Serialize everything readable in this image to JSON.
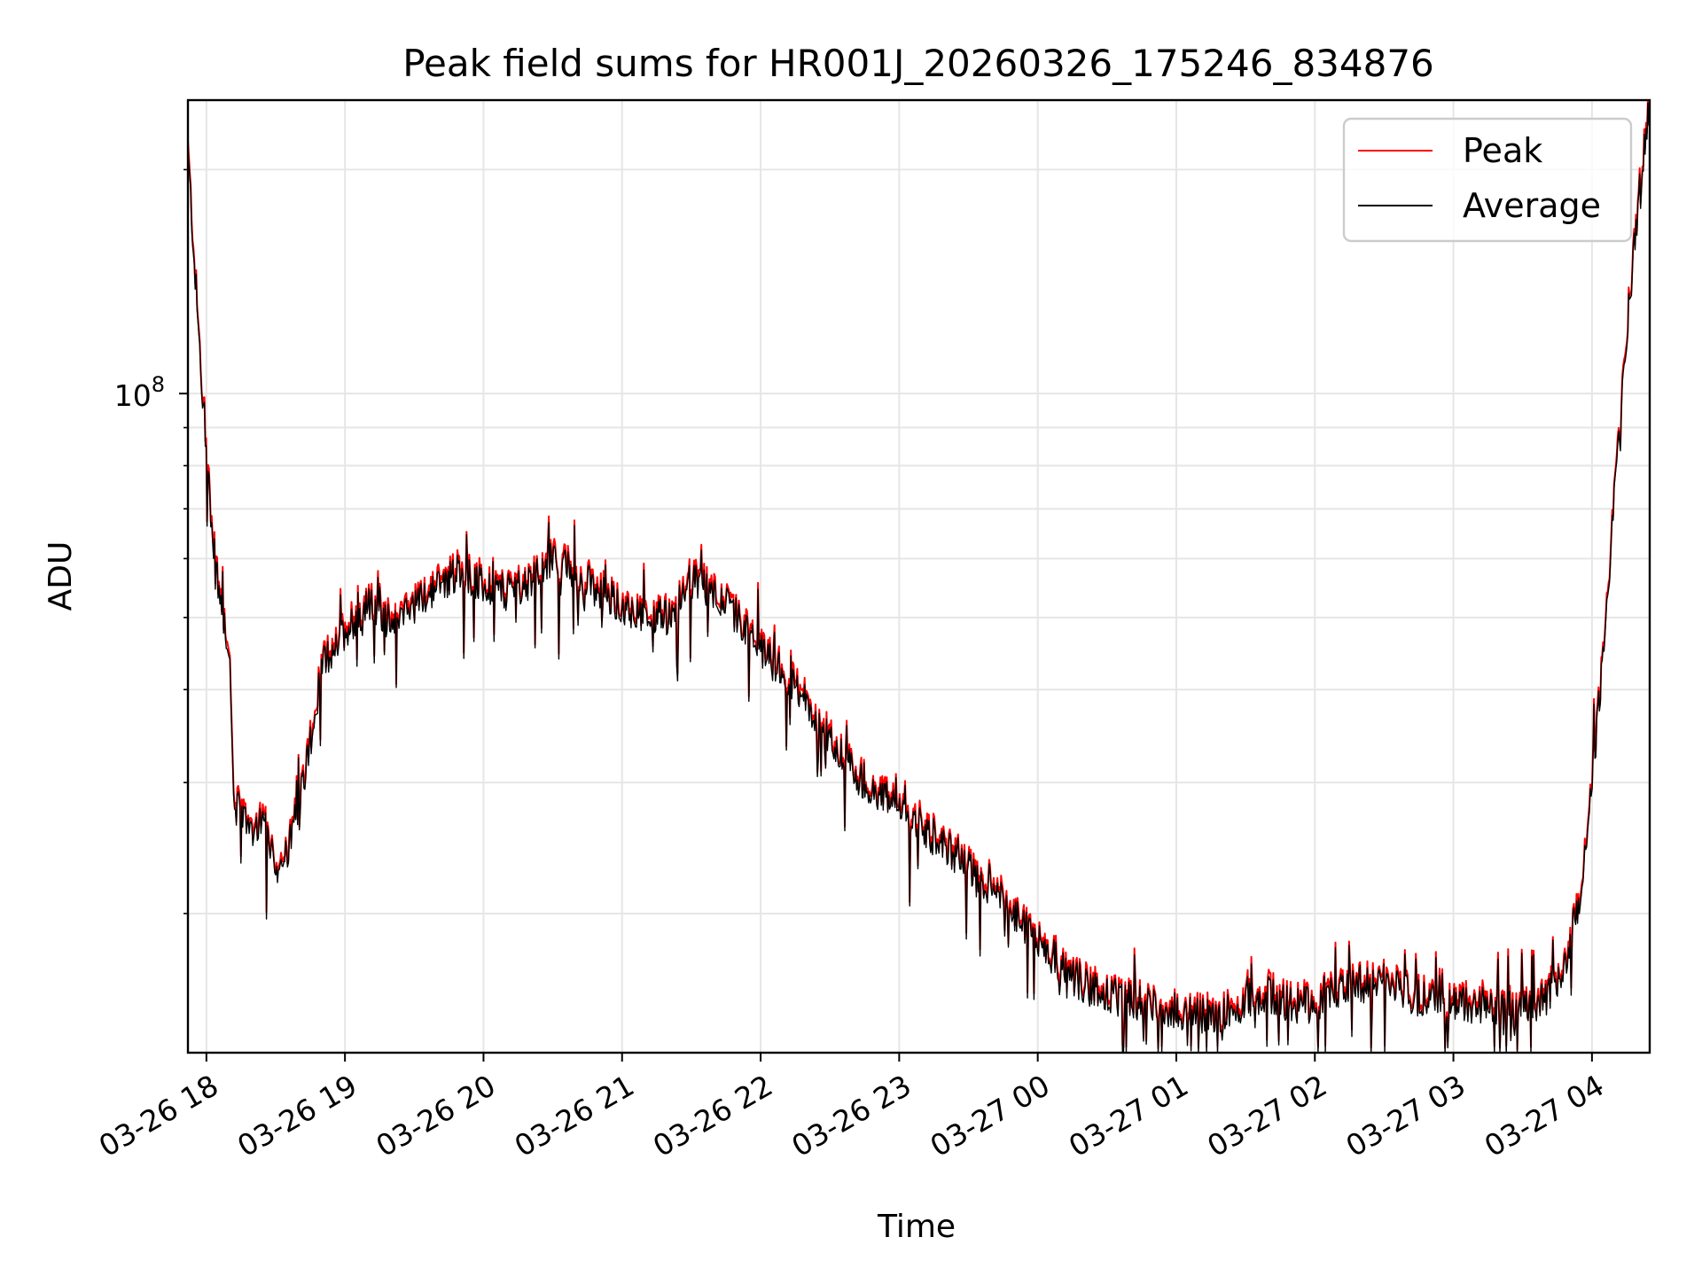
{
  "chart_data": {
    "type": "line",
    "title": "Peak field sums for HR001J_20260326_175246_834876",
    "xlabel": "Time",
    "ylabel": "ADU",
    "y_scale": "log",
    "ylim": [
      13000000,
      248000000
    ],
    "y_major_tick_labels": [
      {
        "base": "10",
        "exp": "8",
        "value": 100000000
      }
    ],
    "x_tick_labels": [
      "03-26 18",
      "03-26 19",
      "03-26 20",
      "03-26 21",
      "03-26 22",
      "03-26 23",
      "03-27 00",
      "03-27 01",
      "03-27 02",
      "03-27 03",
      "03-27 04"
    ],
    "xlim": [
      "2026-03-26 17:52",
      "2026-03-27 04:25"
    ],
    "grid": true,
    "legend_position": "top-right",
    "series": [
      {
        "name": "Peak",
        "color": "#ff0000"
      },
      {
        "name": "Average",
        "color": "#000000"
      }
    ],
    "points": [
      [
        "2026-03-26 17:52",
        210000000
      ],
      [
        "2026-03-26 17:56",
        130000000
      ],
      [
        "2026-03-26 18:00",
        80000000
      ],
      [
        "2026-03-26 18:05",
        55000000
      ],
      [
        "2026-03-26 18:10",
        45000000
      ],
      [
        "2026-03-26 18:12",
        28000000
      ],
      [
        "2026-03-26 18:20",
        26000000
      ],
      [
        "2026-03-26 18:25",
        27000000
      ],
      [
        "2026-03-26 18:30",
        23000000
      ],
      [
        "2026-03-26 18:35",
        24000000
      ],
      [
        "2026-03-26 18:40",
        28000000
      ],
      [
        "2026-03-26 18:45",
        34000000
      ],
      [
        "2026-03-26 18:50",
        43000000
      ],
      [
        "2026-03-26 19:00",
        48000000
      ],
      [
        "2026-03-26 19:10",
        52000000
      ],
      [
        "2026-03-26 19:20",
        49000000
      ],
      [
        "2026-03-26 19:30",
        52000000
      ],
      [
        "2026-03-26 19:40",
        55000000
      ],
      [
        "2026-03-26 19:50",
        58000000
      ],
      [
        "2026-03-26 20:00",
        55000000
      ],
      [
        "2026-03-26 20:10",
        54000000
      ],
      [
        "2026-03-26 20:20",
        56000000
      ],
      [
        "2026-03-26 20:30",
        60000000
      ],
      [
        "2026-03-26 20:40",
        57000000
      ],
      [
        "2026-03-26 20:50",
        54000000
      ],
      [
        "2026-03-26 21:00",
        52000000
      ],
      [
        "2026-03-26 21:10",
        50000000
      ],
      [
        "2026-03-26 21:20",
        50000000
      ],
      [
        "2026-03-26 21:30",
        56000000
      ],
      [
        "2026-03-26 21:40",
        54000000
      ],
      [
        "2026-03-26 21:50",
        50000000
      ],
      [
        "2026-03-26 22:00",
        45000000
      ],
      [
        "2026-03-26 22:10",
        42000000
      ],
      [
        "2026-03-26 22:20",
        38000000
      ],
      [
        "2026-03-26 22:30",
        34000000
      ],
      [
        "2026-03-26 22:40",
        31000000
      ],
      [
        "2026-03-26 22:50",
        29000000
      ],
      [
        "2026-03-26 23:00",
        28000000
      ],
      [
        "2026-03-26 23:10",
        26000000
      ],
      [
        "2026-03-26 23:20",
        24500000
      ],
      [
        "2026-03-26 23:30",
        23000000
      ],
      [
        "2026-03-26 23:40",
        21500000
      ],
      [
        "2026-03-26 23:50",
        20000000
      ],
      [
        "2026-03-27 00:00",
        18500000
      ],
      [
        "2026-03-27 00:10",
        17000000
      ],
      [
        "2026-03-27 00:20",
        16000000
      ],
      [
        "2026-03-27 00:30",
        15500000
      ],
      [
        "2026-03-27 00:40",
        15300000
      ],
      [
        "2026-03-27 00:50",
        15000000
      ],
      [
        "2026-03-27 01:00",
        14800000
      ],
      [
        "2026-03-27 01:10",
        14500000
      ],
      [
        "2026-03-27 01:20",
        14700000
      ],
      [
        "2026-03-27 01:30",
        15200000
      ],
      [
        "2026-03-27 01:40",
        15600000
      ],
      [
        "2026-03-27 01:50",
        15000000
      ],
      [
        "2026-03-27 02:00",
        15100000
      ],
      [
        "2026-03-27 02:10",
        15800000
      ],
      [
        "2026-03-27 02:20",
        16000000
      ],
      [
        "2026-03-27 02:30",
        16200000
      ],
      [
        "2026-03-27 02:40",
        15600000
      ],
      [
        "2026-03-27 02:50",
        15200000
      ],
      [
        "2026-03-27 03:00",
        15000000
      ],
      [
        "2026-03-27 03:10",
        15100000
      ],
      [
        "2026-03-27 03:20",
        14900000
      ],
      [
        "2026-03-27 03:30",
        15000000
      ],
      [
        "2026-03-27 03:40",
        15300000
      ],
      [
        "2026-03-27 03:48",
        17000000
      ],
      [
        "2026-03-27 03:55",
        21000000
      ],
      [
        "2026-03-27 04:00",
        30000000
      ],
      [
        "2026-03-27 04:05",
        45000000
      ],
      [
        "2026-03-27 04:10",
        75000000
      ],
      [
        "2026-03-27 04:15",
        120000000
      ],
      [
        "2026-03-27 04:20",
        180000000
      ],
      [
        "2026-03-27 04:25",
        248000000
      ]
    ]
  }
}
